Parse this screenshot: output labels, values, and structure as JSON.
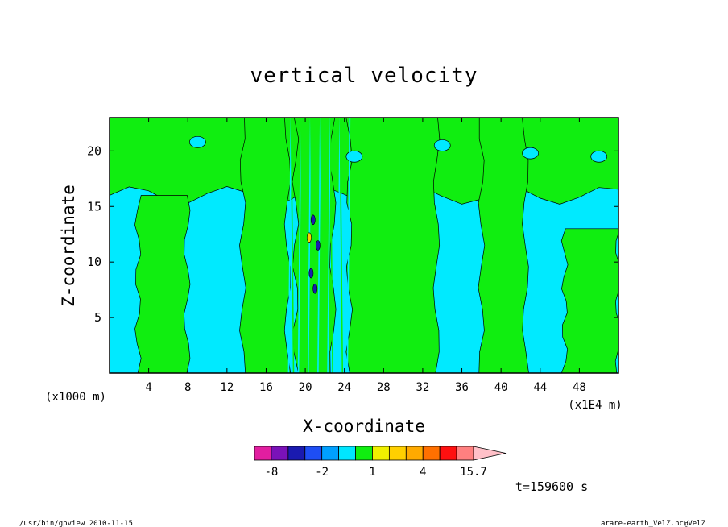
{
  "chart_data": {
    "type": "heatmap",
    "title": "vertical velocity",
    "xlabel": "X-coordinate",
    "ylabel": "Z-coordinate",
    "x_unit_left": "(x1000 m)",
    "x_unit_right": "(x1E4 m)",
    "xlim": [
      0,
      52
    ],
    "ylim": [
      0,
      23
    ],
    "x_ticks": [
      4,
      8,
      12,
      16,
      20,
      24,
      28,
      32,
      36,
      40,
      44,
      48
    ],
    "y_ticks": [
      5,
      10,
      15,
      20
    ],
    "time_label": "t=159600 s",
    "colorbar": {
      "labels": [
        {
          "text": "-8",
          "at": -8
        },
        {
          "text": "-2",
          "at": -2
        },
        {
          "text": "1",
          "at": 1
        },
        {
          "text": "4",
          "at": 4
        },
        {
          "text": "15.7",
          "at": 15.7
        }
      ],
      "bins": [
        {
          "from": -10,
          "to": -8,
          "color": "#e21ea0"
        },
        {
          "from": -8,
          "to": -5,
          "color": "#7a12b8"
        },
        {
          "from": -5,
          "to": -3.5,
          "color": "#1a1ab0"
        },
        {
          "from": -3.5,
          "to": -2,
          "color": "#1e4ef5"
        },
        {
          "from": -2,
          "to": -1,
          "color": "#00a0ff"
        },
        {
          "from": -1,
          "to": 0,
          "color": "#00e6ff"
        },
        {
          "from": 0,
          "to": 1,
          "color": "#10ee10"
        },
        {
          "from": 1,
          "to": 2,
          "color": "#f0f000"
        },
        {
          "from": 2,
          "to": 3,
          "color": "#ffd000"
        },
        {
          "from": 3,
          "to": 4,
          "color": "#ffaa00"
        },
        {
          "from": 4,
          "to": 7,
          "color": "#ff7000"
        },
        {
          "from": 7,
          "to": 11,
          "color": "#ff1010"
        },
        {
          "from": 11,
          "to": 15.7,
          "color": "#ff8080"
        }
      ],
      "arrow_color": "#ffc0c8"
    },
    "field_colors": {
      "negative": "#00eaff",
      "positive": "#10ee10",
      "strong_negative": "#1a1ab0",
      "strong_positive": "#ffd000"
    },
    "updraft_columns": [
      {
        "x_from": 2.9,
        "x_to": 7.9,
        "z_top": 16
      },
      {
        "x_from": 13.6,
        "x_to": 18.2,
        "z_top": 23
      },
      {
        "x_from": 19.0,
        "x_to": 22.8,
        "z_top": 23
      },
      {
        "x_from": 24.5,
        "x_to": 33.4,
        "z_top": 23
      },
      {
        "x_from": 38.0,
        "x_to": 42.5,
        "z_top": 23
      },
      {
        "x_from": 46.5,
        "x_to": 52.0,
        "z_top": 13
      }
    ],
    "upper_band": {
      "z_from": 16,
      "z_to": 23
    },
    "core": {
      "x": 21,
      "z_from": 5,
      "z_to": 15,
      "min": -8,
      "max": 4
    }
  },
  "footer": {
    "left": "/usr/bin/gpview  2010-11-15",
    "right": "arare-earth_VelZ.nc@VelZ"
  }
}
